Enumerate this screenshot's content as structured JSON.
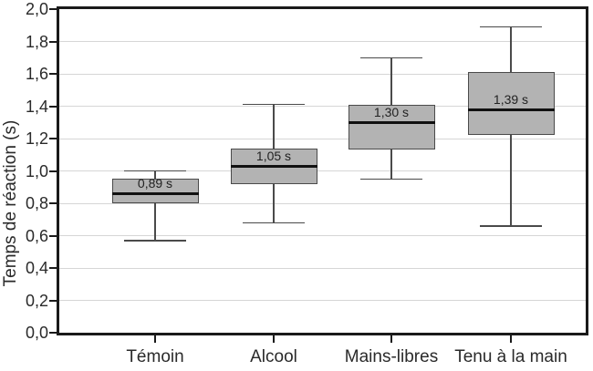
{
  "figure": {
    "background": "#ffffff"
  },
  "chart_data": {
    "type": "boxplot",
    "title": "",
    "ylabel": "Temps de réaction (s)",
    "xlabel": "",
    "ylim": [
      0.0,
      2.0
    ],
    "ytick_interval": 0.2,
    "ytick_labels": [
      "0,0",
      "0,2",
      "0,4",
      "0,6",
      "0,8",
      "1,0",
      "1,2",
      "1,4",
      "1,6",
      "1,8",
      "2,0"
    ],
    "grid": "horizontal-light",
    "legend": "none",
    "categories": [
      "Témoin",
      "Alcool",
      "Mains-libres",
      "Tenu à la main"
    ],
    "series": [
      {
        "category": "Témoin",
        "whisker_low": 0.57,
        "q1": 0.8,
        "median": 0.86,
        "q3": 0.95,
        "whisker_high": 1.0,
        "mean_label": "0,89 s"
      },
      {
        "category": "Alcool",
        "whisker_low": 0.68,
        "q1": 0.92,
        "median": 1.03,
        "q3": 1.14,
        "whisker_high": 1.41,
        "mean_label": "1,05 s"
      },
      {
        "category": "Mains-libres",
        "whisker_low": 0.95,
        "q1": 1.13,
        "median": 1.3,
        "q3": 1.41,
        "whisker_high": 1.7,
        "mean_label": "1,30 s"
      },
      {
        "category": "Tenu à la main",
        "whisker_low": 0.66,
        "q1": 1.22,
        "median": 1.38,
        "q3": 1.61,
        "whisker_high": 1.89,
        "mean_label": "1,39 s"
      }
    ],
    "colors": {
      "box_fill": "#b3b3b3",
      "box_border": "#4a4a4a",
      "median": "#111111",
      "whisker": "#4a4a4a",
      "gridline": "#d6d6d6",
      "frame": "#1a1a1a",
      "text": "#2a2a2a"
    }
  }
}
